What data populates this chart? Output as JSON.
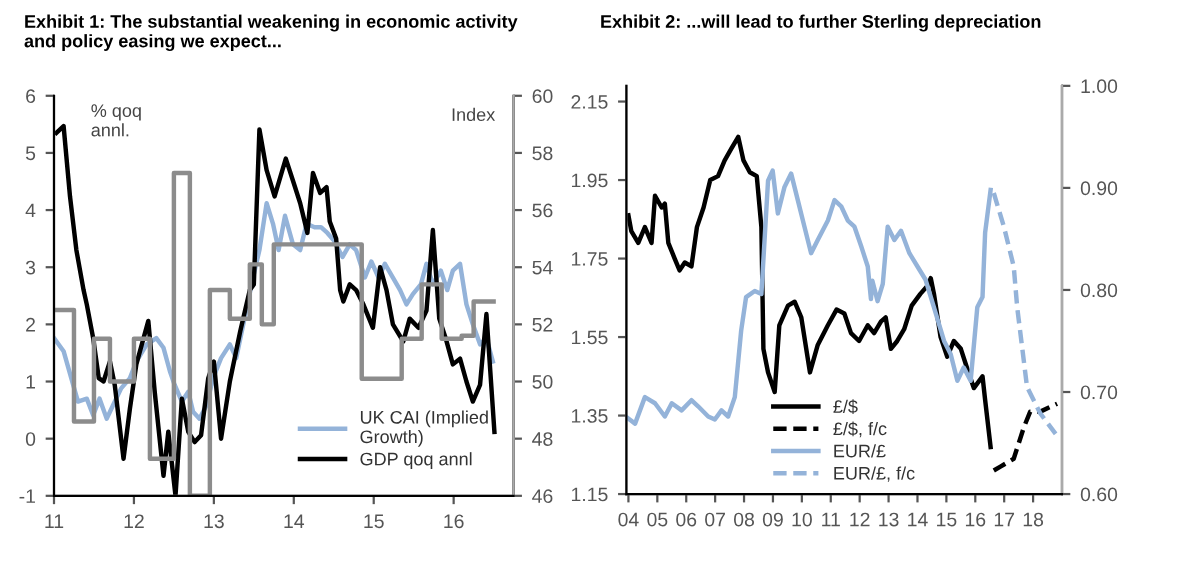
{
  "chart_data": [
    {
      "type": "line",
      "title": "Exhibit 1: The substantial weakening in economic activity\nand policy easing we expect...",
      "ylabel": "% qoq\nannl.",
      "y2label": "Index",
      "xlim": [
        11,
        16.75
      ],
      "xticks": [
        11,
        12,
        13,
        14,
        15,
        16
      ],
      "ylim": [
        -1,
        6
      ],
      "yticks": [
        -1,
        0,
        1,
        2,
        3,
        4,
        5,
        6
      ],
      "y2lim": [
        46,
        60
      ],
      "y2ticks": [
        46,
        48,
        50,
        52,
        54,
        56,
        58,
        60
      ],
      "legend": "bottom right",
      "series": [
        {
          "type": "step",
          "axis": "y2",
          "color": "#8c8c8c",
          "x": [
            11.0,
            11.25,
            11.5,
            11.7,
            12.0,
            12.2,
            12.5,
            12.7,
            12.95,
            13.2,
            13.45,
            13.6,
            13.75,
            14.25,
            14.85,
            15.35,
            15.6,
            15.85,
            16.1,
            16.25,
            16.5
          ],
          "values": [
            52.5,
            48.6,
            51.5,
            50,
            51.5,
            47.3,
            57.3,
            46,
            53.2,
            52.2,
            54.1,
            52,
            54.8,
            54.8,
            50.1,
            51.5,
            53.4,
            51.5,
            51.6,
            52.8,
            52.8
          ]
        },
        {
          "name": "UK CAI (Implied\nGrowth)",
          "color": "#94b3d9",
          "x": [
            11.0,
            11.12,
            11.24,
            11.3,
            11.41,
            11.49,
            11.57,
            11.66,
            11.74,
            11.84,
            11.95,
            12.03,
            12.16,
            12.28,
            12.37,
            12.45,
            12.51,
            12.6,
            12.68,
            12.74,
            12.82,
            12.91,
            12.99,
            13.09,
            13.2,
            13.28,
            13.49,
            13.57,
            13.66,
            13.74,
            13.81,
            13.89,
            13.99,
            14.08,
            14.16,
            14.26,
            14.34,
            14.42,
            14.5,
            14.61,
            14.7,
            14.78,
            14.89,
            14.97,
            15.06,
            15.14,
            15.24,
            15.33,
            15.41,
            15.49,
            15.59,
            15.66,
            15.74,
            15.84,
            15.92,
            15.99,
            16.08,
            16.16,
            16.24,
            16.33,
            16.41,
            16.49
          ],
          "values": [
            1.76,
            1.53,
            0.94,
            0.65,
            0.7,
            0.41,
            0.7,
            0.35,
            0.59,
            0.88,
            1.06,
            1.35,
            1.65,
            1.76,
            1.59,
            1.18,
            0.94,
            0.65,
            0.82,
            0.47,
            0.35,
            0.59,
            1.06,
            1.41,
            1.65,
            1.41,
            2.82,
            3.3,
            4.12,
            3.76,
            3.3,
            3.9,
            3.4,
            3.3,
            3.76,
            3.7,
            3.7,
            3.6,
            3.47,
            3.18,
            3.4,
            3.3,
            2.82,
            3.1,
            2.82,
            3.06,
            2.82,
            2.6,
            2.35,
            2.53,
            2.7,
            3.06,
            2.7,
            2.94,
            2.6,
            2.94,
            3.06,
            2.35,
            2.0,
            1.65,
            1.76,
            1.35
          ]
        },
        {
          "name": "GDP qoq annl",
          "color": "#000000",
          "x": [
            11.03,
            11.12,
            11.2,
            11.28,
            11.37,
            11.41,
            11.49,
            11.56,
            11.62,
            11.7,
            11.76,
            11.87,
            11.95,
            12.03,
            12.18,
            12.26,
            12.37,
            12.43,
            12.52,
            12.6,
            12.68,
            12.76,
            12.84,
            12.93,
            13.0,
            13.09,
            13.2,
            13.33,
            13.45,
            13.5,
            13.57,
            13.66,
            13.76,
            13.9,
            14.0,
            14.08,
            14.17,
            14.24,
            14.33,
            14.41,
            14.45,
            14.53,
            14.58,
            14.62,
            14.7,
            14.78,
            14.87,
            14.99,
            15.08,
            15.16,
            15.24,
            15.37,
            15.45,
            15.56,
            15.66,
            15.74,
            15.82,
            15.9,
            15.99,
            16.08,
            16.16,
            16.24,
            16.33,
            16.41,
            16.51
          ],
          "values": [
            5.35,
            5.47,
            4.24,
            3.3,
            2.6,
            2.35,
            1.76,
            1.06,
            1.0,
            1.35,
            0.94,
            -0.35,
            0.53,
            1.3,
            2.06,
            0.82,
            -0.65,
            0.12,
            -1.0,
            0.7,
            0.12,
            -0.06,
            0.06,
            1.06,
            1.35,
            0.0,
            1.0,
            1.88,
            2.6,
            2.7,
            5.41,
            4.7,
            4.24,
            4.9,
            4.47,
            4.12,
            3.6,
            4.65,
            4.3,
            4.4,
            3.8,
            3.5,
            2.6,
            2.4,
            2.7,
            2.6,
            2.35,
            1.94,
            3.0,
            2.6,
            2.0,
            1.7,
            2.1,
            1.94,
            2.24,
            3.65,
            2.1,
            1.76,
            1.3,
            1.4,
            1.0,
            0.65,
            0.94,
            2.18,
            0.12
          ]
        }
      ]
    },
    {
      "type": "line",
      "title": "Exhibit 2: ...will lead to further Sterling depreciation",
      "xlim": [
        2003.93,
        2019.0
      ],
      "xticks": [
        {
          "value": 2004,
          "label": "04"
        },
        {
          "value": 2005,
          "label": "05"
        },
        {
          "value": 2006,
          "label": "06"
        },
        {
          "value": 2007,
          "label": "07"
        },
        {
          "value": 2008,
          "label": "08"
        },
        {
          "value": 2009,
          "label": "09"
        },
        {
          "value": 2010,
          "label": "10"
        },
        {
          "value": 2011,
          "label": "11"
        },
        {
          "value": 2012,
          "label": "12"
        },
        {
          "value": 2013,
          "label": "13"
        },
        {
          "value": 2014,
          "label": "14"
        },
        {
          "value": 2015,
          "label": "15"
        },
        {
          "value": 2016,
          "label": "16"
        },
        {
          "value": 2017,
          "label": "17"
        },
        {
          "value": 2018,
          "label": "18"
        }
      ],
      "ylim": [
        1.15,
        2.19
      ],
      "yticks": [
        1.15,
        1.35,
        1.55,
        1.75,
        1.95,
        2.15
      ],
      "y2lim": [
        0.6,
        1.0
      ],
      "y2ticks": [
        {
          "value": 0.6,
          "label": "0.60"
        },
        {
          "value": 0.7,
          "label": "0.70"
        },
        {
          "value": 0.8,
          "label": "0.80"
        },
        {
          "value": 0.9,
          "label": "0.90"
        },
        {
          "value": 1.0,
          "label": "1.00"
        }
      ],
      "legend": "bottom",
      "series": [
        {
          "name": "£/$",
          "color": "#000000",
          "line_style": "solid",
          "x": [
            2004.0,
            2004.1,
            2004.34,
            2004.57,
            2004.8,
            2004.92,
            2005.15,
            2005.26,
            2005.38,
            2005.6,
            2005.77,
            2005.95,
            2006.18,
            2006.37,
            2006.6,
            2006.83,
            2007.1,
            2007.33,
            2007.56,
            2007.8,
            2007.98,
            2008.2,
            2008.44,
            2008.6,
            2008.67,
            2008.83,
            2009.06,
            2009.22,
            2009.52,
            2009.75,
            2009.98,
            2010.28,
            2010.55,
            2010.9,
            2011.2,
            2011.47,
            2011.7,
            2011.98,
            2012.28,
            2012.5,
            2012.74,
            2012.9,
            2013.08,
            2013.3,
            2013.54,
            2013.8,
            2014.1,
            2014.34,
            2014.46,
            2014.57,
            2014.8,
            2015.03,
            2015.26,
            2015.5,
            2015.72,
            2015.95,
            2016.25,
            2016.34,
            2016.53
          ],
          "values": [
            1.86,
            1.82,
            1.79,
            1.83,
            1.79,
            1.91,
            1.88,
            1.89,
            1.79,
            1.75,
            1.72,
            1.74,
            1.73,
            1.83,
            1.88,
            1.95,
            1.96,
            2.0,
            2.03,
            2.06,
            2.0,
            1.97,
            1.96,
            1.83,
            1.52,
            1.46,
            1.41,
            1.58,
            1.63,
            1.64,
            1.6,
            1.46,
            1.53,
            1.58,
            1.62,
            1.61,
            1.56,
            1.54,
            1.58,
            1.56,
            1.59,
            1.6,
            1.52,
            1.54,
            1.57,
            1.63,
            1.66,
            1.68,
            1.7,
            1.66,
            1.55,
            1.5,
            1.54,
            1.52,
            1.47,
            1.42,
            1.45,
            1.39,
            1.27
          ]
        },
        {
          "name": "£/$, f/c",
          "color": "#000000",
          "line_style": "dashed",
          "x": [
            2016.64,
            2016.87,
            2017.33,
            2017.68,
            2017.9,
            2018.25,
            2018.83
          ],
          "values": [
            1.21,
            1.22,
            1.24,
            1.32,
            1.36,
            1.36,
            1.38
          ]
        },
        {
          "name": "EUR/£",
          "color": "#94b3d9",
          "axis": "y2",
          "line_style": "solid",
          "x": [
            2003.95,
            2004.23,
            2004.57,
            2004.92,
            2005.26,
            2005.5,
            2005.84,
            2006.18,
            2006.41,
            2006.76,
            2006.99,
            2007.22,
            2007.45,
            2007.68,
            2007.9,
            2008.07,
            2008.37,
            2008.6,
            2008.83,
            2008.99,
            2009.17,
            2009.4,
            2009.63,
            2009.86,
            2010.09,
            2010.32,
            2010.55,
            2010.9,
            2011.13,
            2011.36,
            2011.59,
            2011.82,
            2012.05,
            2012.28,
            2012.39,
            2012.44,
            2012.62,
            2012.8,
            2012.97,
            2013.2,
            2013.43,
            2013.72,
            2014.0,
            2014.28,
            2014.57,
            2014.92,
            2015.15,
            2015.38,
            2015.6,
            2015.84,
            2016.07,
            2016.25,
            2016.34,
            2016.53
          ],
          "values": [
            0.675,
            0.669,
            0.695,
            0.689,
            0.676,
            0.689,
            0.682,
            0.692,
            0.686,
            0.676,
            0.673,
            0.682,
            0.676,
            0.695,
            0.76,
            0.793,
            0.799,
            0.796,
            0.907,
            0.917,
            0.875,
            0.901,
            0.914,
            0.888,
            0.862,
            0.836,
            0.849,
            0.868,
            0.888,
            0.882,
            0.868,
            0.862,
            0.843,
            0.823,
            0.791,
            0.809,
            0.789,
            0.806,
            0.862,
            0.849,
            0.858,
            0.836,
            0.823,
            0.81,
            0.783,
            0.75,
            0.737,
            0.711,
            0.724,
            0.711,
            0.783,
            0.793,
            0.856,
            0.898
          ]
        },
        {
          "name": "EUR/£, f/c",
          "color": "#94b3d9",
          "axis": "y2",
          "line_style": "dashed",
          "x": [
            2016.64,
            2016.99,
            2017.33,
            2017.45,
            2017.79,
            2018.25,
            2018.78
          ],
          "values": [
            0.895,
            0.862,
            0.823,
            0.783,
            0.705,
            0.679,
            0.659
          ]
        }
      ]
    }
  ]
}
